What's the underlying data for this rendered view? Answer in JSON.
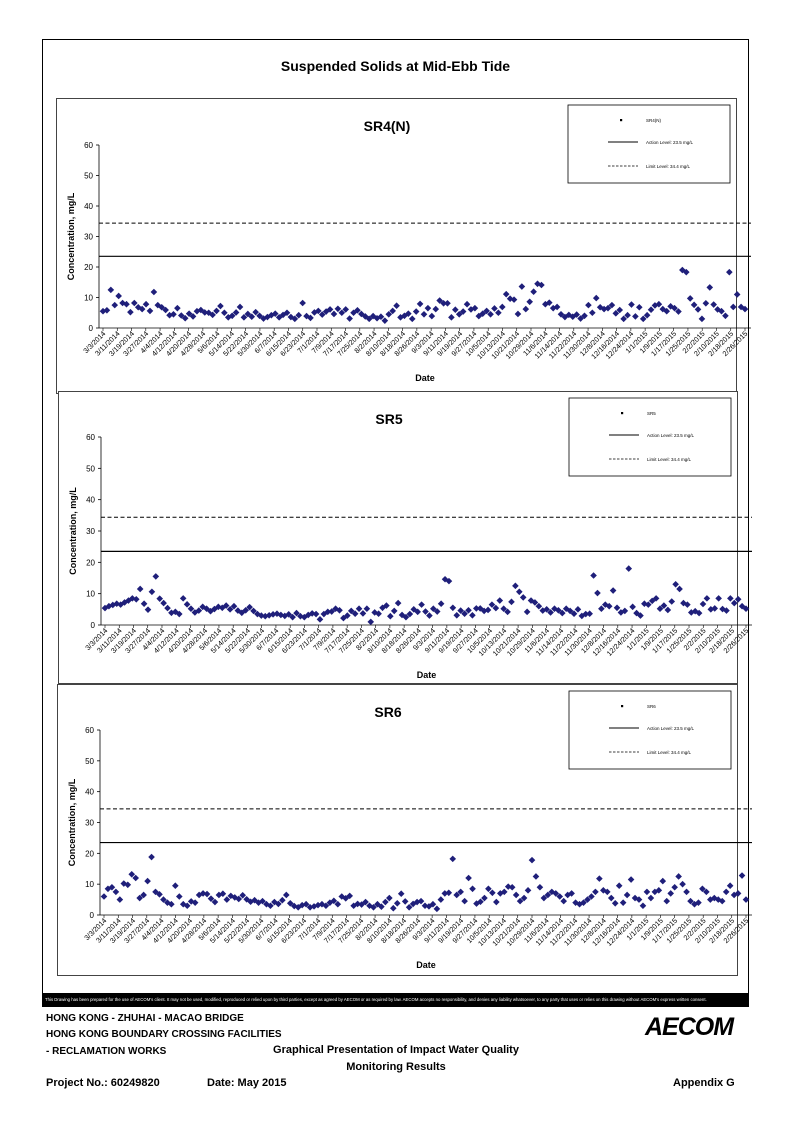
{
  "page": {
    "title": "Suspended Solids at Mid-Ebb Tide",
    "disclaimer": "This Drawing has been prepared for the use of AECOM's client. It may not be used, modified, reproduced or relied upon by third parties, except as agreed by AECOM or as required by law. AECOM accepts no responsibility, and denies any liability whatsoever, to any party that uses or relies on this drawing without AECOM's express written consent.",
    "footer": {
      "line1": "HONG KONG - ZHUHAI - MACAO BRIDGE",
      "line2": "HONG KONG BOUNDARY CROSSING FACILITIES",
      "line3": "- RECLAMATION WORKS",
      "center1": "Graphical Presentation of Impact Water Quality",
      "center2": "Monitoring Results",
      "project": "Project No.: 60249820",
      "date": "Date: May 2015",
      "appendix": "Appendix G",
      "logo": "AECOM"
    }
  },
  "colors": {
    "marker": "#1f1f7a",
    "line": "#000000"
  },
  "chart_data": [
    {
      "type": "scatter",
      "title": "SR4(N)",
      "xlabel": "Date",
      "ylabel": "Concentration, mg/L",
      "ylim": [
        0,
        60
      ],
      "yticks": [
        0,
        10,
        20,
        30,
        40,
        50,
        60
      ],
      "xticks": [
        "3/3/2014",
        "3/11/2014",
        "3/19/2014",
        "3/27/2014",
        "4/4/2014",
        "4/12/2014",
        "4/20/2014",
        "4/28/2014",
        "5/6/2014",
        "5/14/2014",
        "5/22/2014",
        "5/30/2014",
        "6/7/2014",
        "6/15/2014",
        "6/23/2014",
        "7/1/2014",
        "7/9/2014",
        "7/17/2014",
        "7/25/2014",
        "8/2/2014",
        "8/10/2014",
        "8/18/2014",
        "8/26/2014",
        "9/3/2014",
        "9/11/2014",
        "9/19/2014",
        "9/27/2014",
        "10/5/2014",
        "10/13/2014",
        "10/21/2014",
        "10/29/2014",
        "11/6/2014",
        "11/14/2014",
        "11/22/2014",
        "11/30/2014",
        "12/8/2014",
        "12/16/2014",
        "12/24/2014",
        "1/1/2015",
        "1/9/2015",
        "1/17/2015",
        "1/25/2015",
        "2/2/2015",
        "2/10/2015",
        "2/18/2015",
        "2/26/2015"
      ],
      "legend": {
        "placement": "top-right",
        "entries": [
          "SR4(N)",
          "Action Level: 23.5 mg/L",
          "Limit Level: 34.4 mg/L"
        ]
      },
      "action_level": 23.5,
      "limit_level": 34.4,
      "values": [
        5.5,
        5.8,
        12.5,
        7.5,
        10.5,
        8.2,
        7.8,
        5.2,
        8.2,
        6.8,
        6.2,
        7.8,
        5.6,
        11.8,
        7.5,
        6.8,
        5.9,
        4.2,
        4.5,
        6.5,
        4.1,
        3.2,
        4.7,
        3.8,
        5.5,
        5.9,
        5.1,
        5.0,
        4.3,
        5.6,
        7.2,
        5.0,
        3.5,
        4.0,
        5.1,
        6.9,
        3.5,
        4.6,
        3.7,
        5.2,
        4.0,
        3.1,
        3.6,
        4.2,
        4.7,
        3.5,
        4.3,
        5.0,
        3.6,
        3.0,
        4.2,
        8.2,
        3.9,
        3.3,
        5.1,
        5.6,
        4.4,
        5.4,
        6.1,
        4.6,
        6.3,
        5.0,
        6.1,
        3.1,
        5.0,
        5.8,
        4.6,
        3.8,
        3.0,
        3.9,
        3.2,
        3.7,
        2.4,
        4.5,
        5.6,
        7.3,
        3.5,
        4.0,
        4.7,
        3.0,
        5.4,
        7.9,
        4.5,
        6.5,
        3.9,
        6.2,
        9.0,
        8.1,
        8.1,
        3.5,
        6.0,
        4.5,
        5.4,
        7.8,
        6.1,
        6.5,
        3.9,
        4.7,
        5.6,
        4.5,
        6.4,
        5.0,
        6.9,
        11.1,
        9.6,
        9.3,
        4.6,
        13.6,
        6.2,
        8.6,
        11.9,
        14.5,
        14.1,
        7.8,
        8.3,
        6.5,
        6.9,
        4.5,
        3.6,
        4.3,
        3.7,
        4.4,
        3.1,
        4.0,
        7.5,
        5.0,
        9.8,
        6.8,
        6.2,
        6.5,
        7.5,
        4.8,
        5.9,
        3.0,
        4.2,
        7.7,
        3.8,
        6.8,
        3.0,
        4.2,
        6.0,
        7.4,
        7.8,
        6.2,
        5.5,
        7.1,
        6.5,
        5.4,
        19.0,
        18.3,
        9.7,
        7.6,
        6.1,
        3.0,
        8.1,
        13.3,
        7.7,
        6.1,
        5.5,
        4.0,
        18.3,
        6.9,
        11.0,
        6.9,
        6.2
      ]
    },
    {
      "type": "scatter",
      "title": "SR5",
      "xlabel": "Date",
      "ylabel": "Concentration, mg/L",
      "ylim": [
        0,
        60
      ],
      "yticks": [
        0,
        10,
        20,
        30,
        40,
        50,
        60
      ],
      "xticks": [
        "3/3/2014",
        "3/11/2014",
        "3/19/2014",
        "3/27/2014",
        "4/4/2014",
        "4/12/2014",
        "4/20/2014",
        "4/28/2014",
        "5/6/2014",
        "5/14/2014",
        "5/22/2014",
        "5/30/2014",
        "6/7/2014",
        "6/15/2014",
        "6/23/2014",
        "7/1/2014",
        "7/9/2014",
        "7/17/2014",
        "7/25/2014",
        "8/2/2014",
        "8/10/2014",
        "8/18/2014",
        "8/26/2014",
        "9/3/2014",
        "9/11/2014",
        "9/19/2014",
        "9/27/2014",
        "10/5/2014",
        "10/13/2014",
        "10/21/2014",
        "10/29/2014",
        "11/6/2014",
        "11/14/2014",
        "11/22/2014",
        "11/30/2014",
        "12/8/2014",
        "12/16/2014",
        "12/24/2014",
        "1/1/2015",
        "1/9/2015",
        "1/17/2015",
        "1/25/2015",
        "2/2/2015",
        "2/10/2015",
        "2/18/2015",
        "2/26/2015"
      ],
      "legend": {
        "placement": "top-right",
        "entries": [
          "SR5",
          "Action Level: 23.5 mg/L",
          "Limit Level: 34.4 mg/L"
        ]
      },
      "action_level": 23.5,
      "limit_level": 34.4,
      "values": [
        5.4,
        6.0,
        6.4,
        6.8,
        6.5,
        7.2,
        7.8,
        8.5,
        8.2,
        11.5,
        6.8,
        4.9,
        10.6,
        15.5,
        8.4,
        7.0,
        5.4,
        3.9,
        4.2,
        3.5,
        8.5,
        6.6,
        5.2,
        4.0,
        4.6,
        5.8,
        5.2,
        4.4,
        5.1,
        5.8,
        5.5,
        6.2,
        5.0,
        6.0,
        4.6,
        3.9,
        4.7,
        5.7,
        4.5,
        3.5,
        3.0,
        2.8,
        3.1,
        3.4,
        3.6,
        3.2,
        2.9,
        3.4,
        2.5,
        3.8,
        2.8,
        2.5,
        3.2,
        3.7,
        3.5,
        1.8,
        3.5,
        4.2,
        4.3,
        5.2,
        4.7,
        2.2,
        3.0,
        4.5,
        3.6,
        5.2,
        3.7,
        5.2,
        1.0,
        4.0,
        3.6,
        5.5,
        6.2,
        2.8,
        4.5,
        7.0,
        3.2,
        2.5,
        3.5,
        5.0,
        4.2,
        6.5,
        4.3,
        3.0,
        5.2,
        4.3,
        6.8,
        14.6,
        14.0,
        5.5,
        3.1,
        4.6,
        3.6,
        4.7,
        3.1,
        5.3,
        5.3,
        4.5,
        4.8,
        6.5,
        5.4,
        7.8,
        5.2,
        4.2,
        7.4,
        12.5,
        10.6,
        8.8,
        4.2,
        7.8,
        7.2,
        6.0,
        4.6,
        5.0,
        4.0,
        5.2,
        4.7,
        3.8,
        5.2,
        4.5,
        3.6,
        5.0,
        2.9,
        3.5,
        3.6,
        15.8,
        10.2,
        5.2,
        6.5,
        6.0,
        11.0,
        5.5,
        4.0,
        4.5,
        18.0,
        5.8,
        3.8,
        3.0,
        6.8,
        6.5,
        7.7,
        8.5,
        5.2,
        6.2,
        4.8,
        7.5,
        13.0,
        11.5,
        7.0,
        6.5,
        4.0,
        4.4,
        3.8,
        6.7,
        8.5,
        5.0,
        5.3,
        8.5,
        5.1,
        4.6,
        8.5,
        7.0,
        8.2,
        6.0,
        5.2
      ]
    },
    {
      "type": "scatter",
      "title": "SR6",
      "xlabel": "Date",
      "ylabel": "Concentration, mg/L",
      "ylim": [
        0,
        60
      ],
      "yticks": [
        0,
        10,
        20,
        30,
        40,
        50,
        60
      ],
      "xticks": [
        "3/3/2014",
        "3/11/2014",
        "3/19/2014",
        "3/27/2014",
        "4/4/2014",
        "4/12/2014",
        "4/20/2014",
        "4/28/2014",
        "5/6/2014",
        "5/14/2014",
        "5/22/2014",
        "5/30/2014",
        "6/7/2014",
        "6/15/2014",
        "6/23/2014",
        "7/1/2014",
        "7/9/2014",
        "7/17/2014",
        "7/25/2014",
        "8/2/2014",
        "8/10/2014",
        "8/18/2014",
        "8/26/2014",
        "9/3/2014",
        "9/11/2014",
        "9/19/2014",
        "9/27/2014",
        "10/5/2014",
        "10/13/2014",
        "10/21/2014",
        "10/29/2014",
        "11/6/2014",
        "11/14/2014",
        "11/22/2014",
        "11/30/2014",
        "12/8/2014",
        "12/16/2014",
        "12/24/2014",
        "1/1/2015",
        "1/9/2015",
        "1/17/2015",
        "1/25/2015",
        "2/2/2015",
        "2/10/2015",
        "2/18/2015",
        "2/26/2015"
      ],
      "legend": {
        "placement": "top-right",
        "entries": [
          "SR6",
          "Action Level: 23.5 mg/L",
          "Limit Level: 34.4 mg/L"
        ]
      },
      "action_level": 23.5,
      "limit_level": 34.4,
      "values": [
        6.0,
        8.5,
        9.0,
        7.5,
        5.0,
        10.2,
        9.8,
        13.2,
        12.0,
        5.5,
        6.5,
        11.0,
        18.8,
        7.5,
        6.7,
        5.0,
        4.0,
        3.5,
        9.5,
        6.0,
        3.5,
        3.0,
        4.4,
        4.0,
        6.5,
        7.0,
        6.8,
        5.3,
        4.2,
        6.5,
        6.9,
        5.0,
        6.2,
        5.7,
        5.2,
        6.4,
        5.1,
        4.3,
        4.8,
        4.0,
        4.5,
        3.5,
        3.0,
        4.2,
        3.6,
        4.8,
        6.5,
        3.8,
        2.9,
        2.5,
        3.2,
        3.5,
        2.5,
        2.8,
        3.2,
        3.5,
        3.0,
        4.0,
        4.6,
        3.5,
        6.0,
        5.4,
        6.2,
        3.0,
        3.6,
        3.4,
        4.2,
        3.0,
        2.5,
        3.5,
        2.7,
        4.2,
        5.5,
        2.2,
        3.8,
        6.9,
        4.4,
        2.5,
        3.6,
        4.2,
        4.5,
        3.0,
        2.8,
        3.5,
        2.0,
        5.0,
        7.0,
        7.2,
        18.2,
        6.5,
        7.5,
        4.5,
        12.0,
        8.5,
        3.7,
        4.3,
        5.5,
        8.5,
        7.2,
        4.2,
        7.0,
        7.5,
        9.2,
        9.0,
        6.5,
        4.5,
        5.5,
        8.0,
        17.8,
        12.5,
        9.0,
        5.5,
        6.5,
        7.5,
        7.0,
        6.0,
        4.5,
        6.5,
        7.0,
        4.0,
        3.5,
        4.0,
        5.0,
        6.0,
        7.5,
        11.8,
        8.0,
        7.5,
        5.5,
        3.8,
        9.5,
        4.0,
        6.5,
        11.5,
        5.5,
        5.0,
        3.0,
        7.5,
        5.5,
        7.5,
        8.0,
        11.0,
        4.5,
        7.0,
        9.0,
        12.5,
        10.0,
        7.5,
        4.5,
        3.5,
        4.0,
        8.5,
        7.5,
        5.0,
        5.5,
        5.0,
        4.5,
        7.5,
        9.5,
        6.5,
        7.0,
        12.8,
        5.0
      ]
    }
  ]
}
